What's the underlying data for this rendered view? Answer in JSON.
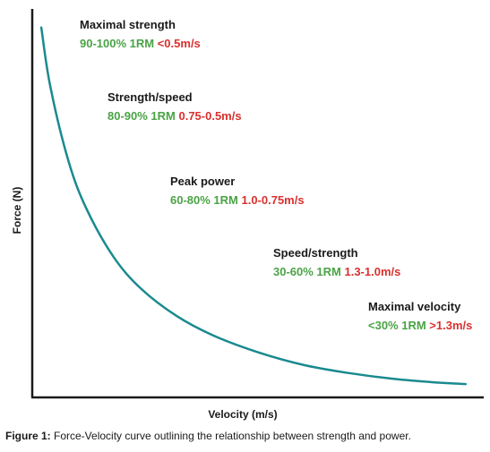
{
  "chart_data": {
    "type": "line",
    "title": "",
    "xlabel": "Velocity (m/s)",
    "ylabel": "Force (N)",
    "grid": false,
    "legend": "none",
    "series": [
      {
        "x": [
          0.05,
          0.1,
          0.2,
          0.3,
          0.45,
          0.6,
          0.8,
          1.0,
          1.25,
          1.5,
          1.75,
          2.0,
          2.25,
          2.4
        ],
        "y": [
          100,
          84,
          64,
          51,
          38,
          29.5,
          22,
          16.8,
          12.2,
          8.8,
          6.6,
          5.0,
          4.0,
          3.6
        ]
      }
    ],
    "xlim": [
      0,
      2.5
    ],
    "ylim": [
      0,
      105
    ],
    "zones": [
      {
        "title": "Maximal strength",
        "pct": "90-100% 1RM",
        "vel": "<0.5m/s"
      },
      {
        "title": "Strength/speed",
        "pct": "80-90% 1RM",
        "vel": "0.75-0.5m/s"
      },
      {
        "title": "Peak power",
        "pct": "60-80% 1RM",
        "vel": "1.0-0.75m/s"
      },
      {
        "title": "Speed/strength",
        "pct": "30-60% 1RM",
        "vel": "1.3-1.0m/s"
      },
      {
        "title": "Maximal velocity",
        "pct": "<30% 1RM",
        "vel": ">1.3m/s"
      }
    ]
  },
  "caption": {
    "label": "Figure 1:",
    "text": " Force-Velocity curve outlining the relationship between strength and power."
  },
  "colors": {
    "curve": "#1a8a8f",
    "axis": "#1a1a1a",
    "percent": "#4aa345",
    "velocity": "#d8312f"
  }
}
